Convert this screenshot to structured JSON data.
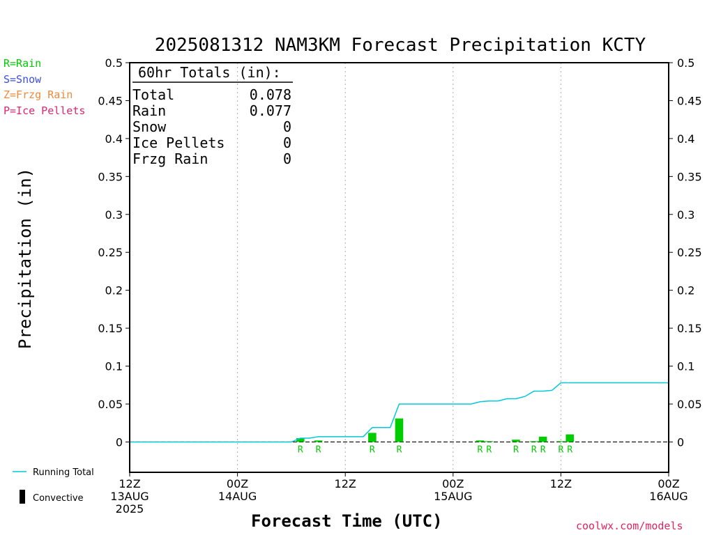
{
  "title": "2025081312 NAM3KM Forecast Precipitation KCTY",
  "legend_ptypes": [
    {
      "text": "R=Rain",
      "color": "#00cc00"
    },
    {
      "text": "S=Snow",
      "color": "#3b4fe0"
    },
    {
      "text": "Z=Frzg Rain",
      "color": "#ee8a3a"
    },
    {
      "text": "P=Ice Pellets",
      "color": "#e0246e"
    }
  ],
  "totals": {
    "header": "60hr Totals (in):",
    "rows": [
      {
        "label": "Total",
        "value": "0.078"
      },
      {
        "label": "Rain",
        "value": "0.077"
      },
      {
        "label": "Snow",
        "value": "0"
      },
      {
        "label": "Ice Pellets",
        "value": "0"
      },
      {
        "label": "Frzg Rain",
        "value": "0"
      }
    ]
  },
  "bottom_legend": {
    "running_total": "Running Total",
    "convective": "Convective"
  },
  "credit": "coolwx.com/models",
  "colors": {
    "bar": "#00cc00",
    "line": "#00c8d8"
  },
  "chart_data": {
    "type": "bar",
    "title": "2025081312 NAM3KM Forecast Precipitation KCTY",
    "xlabel": "Forecast Time (UTC)",
    "ylabel": "Precipitation (in)",
    "ylim": [
      -0.04,
      0.5
    ],
    "xlim_hours": [
      0,
      60
    ],
    "grid": "vertical dotted every 12h",
    "y_ticks": [
      "0",
      "0.05",
      "0.1",
      "0.15",
      "0.2",
      "0.25",
      "0.3",
      "0.35",
      "0.4",
      "0.45",
      "0.5"
    ],
    "y_tick_values": [
      0,
      0.05,
      0.1,
      0.15,
      0.2,
      0.25,
      0.3,
      0.35,
      0.4,
      0.45,
      0.5
    ],
    "x_ticks": [
      {
        "hour": 0,
        "lines": [
          "12Z",
          "13AUG",
          "2025"
        ]
      },
      {
        "hour": 12,
        "lines": [
          "00Z",
          "14AUG"
        ]
      },
      {
        "hour": 24,
        "lines": [
          "12Z"
        ]
      },
      {
        "hour": 36,
        "lines": [
          "00Z",
          "15AUG"
        ]
      },
      {
        "hour": 48,
        "lines": [
          "12Z"
        ]
      },
      {
        "hour": 60,
        "lines": [
          "00Z",
          "16AUG"
        ]
      }
    ],
    "bars": [
      {
        "hour": 19,
        "value": 0.005,
        "ptype": "R"
      },
      {
        "hour": 21,
        "value": 0.002,
        "ptype": "R"
      },
      {
        "hour": 27,
        "value": 0.012,
        "ptype": "R"
      },
      {
        "hour": 30,
        "value": 0.031,
        "ptype": "R"
      },
      {
        "hour": 39,
        "value": 0.002,
        "ptype": "R"
      },
      {
        "hour": 40,
        "value": 0.001,
        "ptype": "R"
      },
      {
        "hour": 43,
        "value": 0.003,
        "ptype": "R"
      },
      {
        "hour": 45,
        "value": 0.001,
        "ptype": "R"
      },
      {
        "hour": 46,
        "value": 0.007,
        "ptype": "R"
      },
      {
        "hour": 48,
        "value": 0.001,
        "ptype": "R"
      },
      {
        "hour": 49,
        "value": 0.01,
        "ptype": "R"
      }
    ],
    "running_total": {
      "hours": [
        0,
        18,
        19,
        20,
        21,
        25,
        26,
        27,
        28,
        29,
        30,
        38,
        39,
        40,
        41,
        42,
        43,
        44,
        45,
        46,
        47,
        48,
        49,
        60
      ],
      "values": [
        0,
        0,
        0.005,
        0.005,
        0.007,
        0.007,
        0.007,
        0.019,
        0.019,
        0.019,
        0.05,
        0.05,
        0.053,
        0.054,
        0.054,
        0.057,
        0.057,
        0.06,
        0.067,
        0.067,
        0.068,
        0.078,
        0.078,
        0.078
      ]
    }
  }
}
